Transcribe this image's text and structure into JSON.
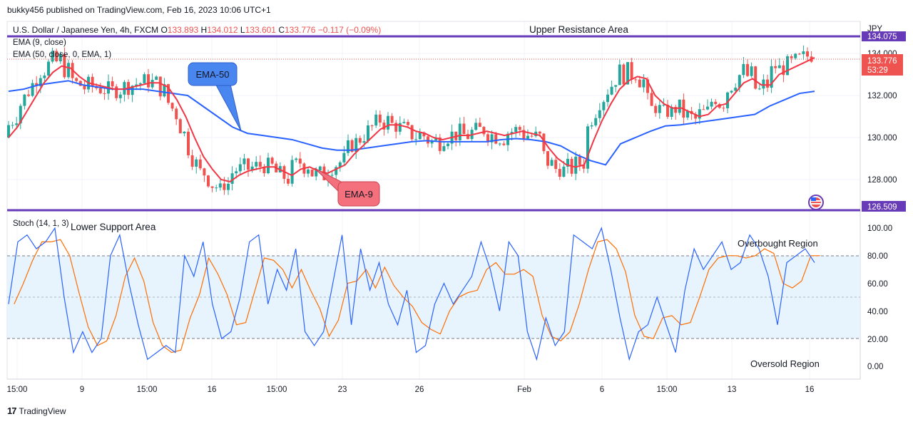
{
  "header": {
    "publisher": "bukky456 published on TradingView.com, Feb 16, 2023 10:06 UTC+1"
  },
  "legend": {
    "symbol": "U.S. Dollar / Japanese Yen, 4h, FXCM",
    "o_label": "O",
    "o_value": "133.893",
    "h_label": "H",
    "h_value": "134.012",
    "l_label": "L",
    "l_value": "133.601",
    "c_label": "C",
    "c_value": "133.776",
    "change": "−0.117 (−0.09%)",
    "ema9": "EMA (9, close)",
    "ema50": "EMA (50, close, 0, EMA, 1)",
    "stoch": "Stoch (14, 1, 3)"
  },
  "annotations": {
    "upper_resistance": "Upper Resistance Area",
    "lower_support": "Lower Support Area",
    "ema50_callout": "EMA-50",
    "ema9_callout": "EMA-9",
    "overbought": "Overbought Region",
    "oversold": "Oversold Region"
  },
  "price_axis": {
    "currency": "JPY",
    "ticks": [
      "134.000",
      "132.000",
      "130.000",
      "128.000"
    ],
    "resistance_label": "134.075",
    "support_label": "126.509",
    "last_price": "133.776",
    "countdown": "53:29"
  },
  "stoch_axis": {
    "ticks": [
      "100.00",
      "80.00",
      "60.00",
      "40.00",
      "20.00",
      "0.00"
    ]
  },
  "time_axis": {
    "labels": [
      "15:00",
      "9",
      "15:00",
      "16",
      "15:00",
      "23",
      "26",
      "Feb",
      "6",
      "15:00",
      "13",
      "16"
    ]
  },
  "footer": {
    "brand": "TradingView"
  },
  "colors": {
    "up": "#26a69a",
    "down": "#ef5350",
    "ema9": "#f23645",
    "ema50": "#2962ff",
    "level": "#673ab7",
    "stoch_k": "#2962ff",
    "stoch_d": "#ff6d00",
    "band": "#e3f2fd"
  },
  "chart_data": {
    "type": "candlestick",
    "symbol": "USDJPY",
    "timeframe": "4h",
    "ylim": [
      126.5,
      134.7
    ],
    "resistance_level": 134.075,
    "support_level": 126.509,
    "ema9_values": [
      130.0,
      130.5,
      131.2,
      131.9,
      132.6,
      133.1,
      133.4,
      133.3,
      132.9,
      132.6,
      132.5,
      132.4,
      132.3,
      132.3,
      132.4,
      132.5,
      132.6,
      132.6,
      132.4,
      131.8,
      131.0,
      130.0,
      129.1,
      128.5,
      128.0,
      127.9,
      128.2,
      128.4,
      128.5,
      128.6,
      128.6,
      128.4,
      128.2,
      128.5,
      128.6,
      128.4,
      128.3,
      128.5,
      128.7,
      129.2,
      129.6,
      130.0,
      130.4,
      130.6,
      130.6,
      130.5,
      130.3,
      130.2,
      130.0,
      129.9,
      130.0,
      130.1,
      130.1,
      130.2,
      130.3,
      130.2,
      130.1,
      130.2,
      130.3,
      130.2,
      130.1,
      129.5,
      129.0,
      128.7,
      128.6,
      128.7,
      129.8,
      130.8,
      131.6,
      132.3,
      132.7,
      132.9,
      132.8,
      132.0,
      131.6,
      131.4,
      131.4,
      131.2,
      131.0,
      131.1,
      131.5,
      131.6,
      132.1,
      132.6,
      132.8,
      132.5,
      132.5,
      133.0,
      133.2,
      133.4,
      133.6,
      133.8
    ],
    "ema50_values": [
      132.2,
      132.3,
      132.5,
      132.6,
      132.7,
      132.5,
      132.4,
      132.3,
      132.3,
      132.3,
      132.2,
      132.1,
      132.0,
      131.5,
      131.0,
      130.5,
      130.2,
      130.1,
      130.0,
      129.9,
      129.7,
      129.5,
      129.4,
      129.4,
      129.5,
      129.6,
      129.7,
      129.8,
      129.85,
      129.8,
      129.8,
      129.8,
      129.8,
      129.9,
      129.95,
      129.9,
      129.8,
      129.6,
      129.2,
      128.9,
      128.7,
      129.7,
      130.0,
      130.3,
      130.55,
      130.6,
      130.7,
      130.8,
      130.9,
      131.0,
      131.1,
      131.5,
      131.8,
      132.1,
      132.2
    ],
    "stoch_k_values": [
      45,
      90,
      95,
      85,
      90,
      100,
      50,
      10,
      25,
      10,
      20,
      80,
      95,
      60,
      30,
      5,
      10,
      15,
      10,
      80,
      65,
      90,
      45,
      20,
      25,
      50,
      90,
      95,
      45,
      70,
      55,
      85,
      25,
      15,
      25,
      60,
      95,
      30,
      85,
      55,
      75,
      45,
      30,
      55,
      10,
      15,
      45,
      60,
      45,
      55,
      65,
      90,
      70,
      40,
      90,
      80,
      25,
      5,
      35,
      15,
      25,
      95,
      90,
      85,
      100,
      70,
      35,
      5,
      25,
      30,
      50,
      30,
      10,
      55,
      85,
      70,
      80,
      90,
      70,
      75,
      95,
      85,
      65,
      30,
      75,
      80,
      85,
      75
    ]
  }
}
